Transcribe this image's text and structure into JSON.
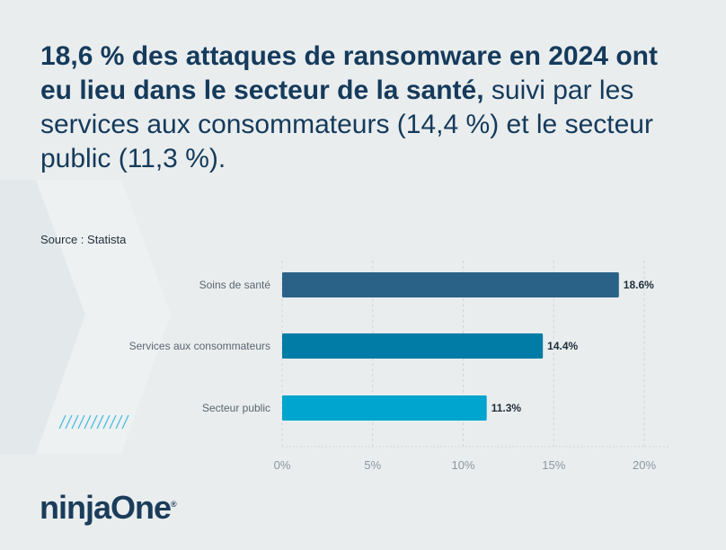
{
  "headline": {
    "bold": "18,6 % des attaques de ransomware en 2024 ont eu lieu dans le secteur de la santé,",
    "regular": "suivi par les services aux consommateurs (14,4 %) et le secteur public (11,3 %)."
  },
  "source": "Source : Statista",
  "logo": "ninjaOne",
  "logo_mark": "®",
  "chart_data": {
    "type": "bar",
    "orientation": "horizontal",
    "categories": [
      "Soins de santé",
      "Services aux consommateurs",
      "Secteur public"
    ],
    "values": [
      18.6,
      14.4,
      11.3
    ],
    "data_labels": [
      "18.6%",
      "14.4%",
      "11.3%"
    ],
    "colors": [
      "#2a6287",
      "#007ca6",
      "#00a5cf"
    ],
    "xlim": [
      0,
      20
    ],
    "xticks": [
      "0%",
      "5%",
      "10%",
      "15%",
      "20%"
    ],
    "grid": true
  }
}
